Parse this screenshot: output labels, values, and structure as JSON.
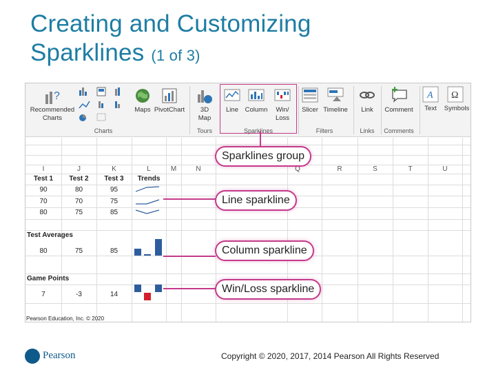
{
  "slide": {
    "title_line1": "Creating and Customizing",
    "title_line2": "Sparklines",
    "title_suffix": "(1 of 3)",
    "credit": "Pearson Education, Inc. © 2020",
    "logo_text": "Pearson",
    "copyright": "Copyright © 2020, 2017, 2014 Pearson All Rights Reserved"
  },
  "ribbon": {
    "recommended_charts_line1": "Recommended",
    "recommended_charts_line2": "Charts",
    "maps": "Maps",
    "pivotchart": "PivotChart",
    "map3d_line1": "3D",
    "map3d_line2": "Map",
    "line": "Line",
    "column": "Column",
    "winloss_line1": "Win/",
    "winloss_line2": "Loss",
    "slicer": "Slicer",
    "timeline": "Timeline",
    "link": "Link",
    "comment": "Comment",
    "text": "Text",
    "symbols": "Symbols",
    "groups": {
      "charts": "Charts",
      "tours": "Tours",
      "sparklines": "Sparklines",
      "filters": "Filters",
      "links": "Links",
      "comments": "Comments"
    },
    "accent_color": "#c43a8a"
  },
  "sheet": {
    "column_headers": [
      "I",
      "J",
      "K",
      "L",
      "M",
      "N",
      "Q",
      "R",
      "S",
      "T",
      "U"
    ],
    "header_row": [
      "Test 1",
      "Test 2",
      "Test 3",
      "Trends"
    ],
    "rows": [
      [
        "90",
        "80",
        "95"
      ],
      [
        "70",
        "70",
        "75"
      ],
      [
        "80",
        "75",
        "85"
      ]
    ],
    "test_averages_label": "Test Averages",
    "averages": [
      "80",
      "75",
      "85"
    ],
    "game_points_label": "Game Points",
    "points": [
      "7",
      "-3",
      "14"
    ]
  },
  "callouts": {
    "sparklines_group": "Sparklines group",
    "line_sparkline": "Line sparkline",
    "column_sparkline": "Column sparkline",
    "winloss_sparkline": "Win/Loss sparkline"
  },
  "sparkline_colors": {
    "positive": "#2e5d9e",
    "negative": "#d3202f"
  }
}
